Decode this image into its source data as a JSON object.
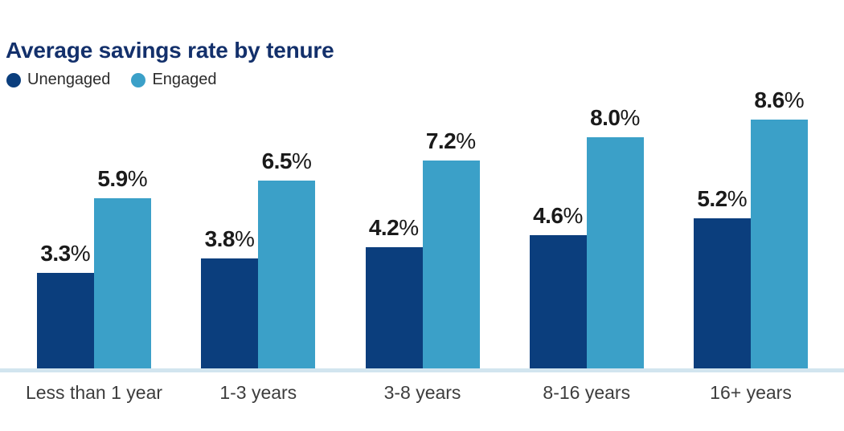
{
  "title": "Average savings rate by tenure",
  "colors": {
    "title": "#13306b",
    "unengaged": "#0b3e7d",
    "engaged": "#3ba0c8",
    "axis_line": "#d2e5ef",
    "value_label": "#1a1a1a",
    "category_label": "#3d3d3d"
  },
  "legend": {
    "items": [
      {
        "label": "Unengaged",
        "color": "#0b3e7d"
      },
      {
        "label": "Engaged",
        "color": "#3ba0c8"
      }
    ]
  },
  "chart_data": {
    "type": "bar",
    "title": "Average savings rate by tenure",
    "categories": [
      "Less than 1 year",
      "1-3 years",
      "3-8 years",
      "8-16 years",
      "16+ years"
    ],
    "series": [
      {
        "name": "Unengaged",
        "color": "#0b3e7d",
        "values": [
          3.3,
          3.8,
          4.2,
          4.6,
          5.2
        ]
      },
      {
        "name": "Engaged",
        "color": "#3ba0c8",
        "values": [
          5.9,
          6.5,
          7.2,
          8.0,
          8.6
        ]
      }
    ],
    "value_suffix": "%",
    "value_decimals": 1,
    "data_labels": true,
    "xlabel": "",
    "ylabel": "",
    "ylim": [
      0,
      9.2
    ],
    "grid": false,
    "legend_position": "top-left"
  }
}
